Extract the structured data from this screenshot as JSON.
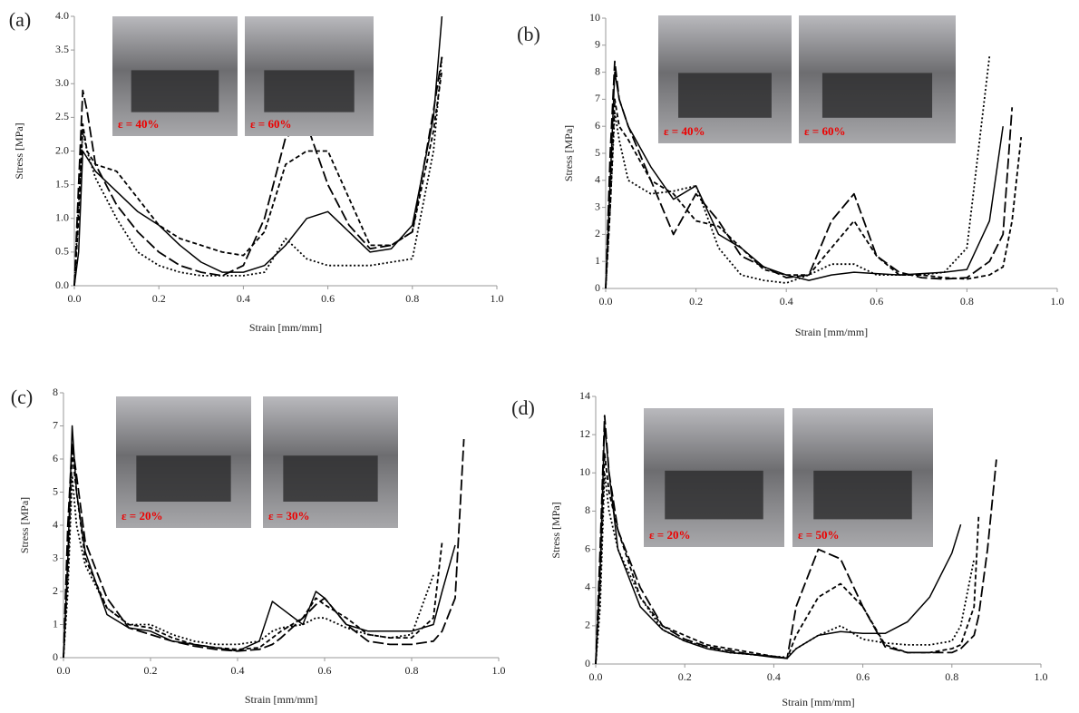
{
  "chart_data": [
    {
      "type": "line",
      "label": "(a)",
      "xlabel": "Strain [mm/mm]",
      "ylabel": "Stress [MPa]",
      "annotations": [
        "ε = 40%",
        "ε = 60%"
      ],
      "xlim": [
        0,
        1
      ],
      "ylim": [
        0,
        4
      ],
      "xticks": [
        {
          "value": 0,
          "label": "0.0"
        },
        0.2,
        0.4,
        0.6,
        0.8,
        {
          "value": 1,
          "label": "1.0"
        }
      ],
      "yticks": [
        {
          "value": 0,
          "label": "0.0"
        },
        0.5,
        {
          "value": 1,
          "label": "1.0"
        },
        1.5,
        {
          "value": 2,
          "label": "2.0"
        },
        2.5,
        {
          "value": 3,
          "label": "3.0"
        },
        3.5,
        {
          "value": 4,
          "label": "4.0"
        }
      ],
      "x": [
        0,
        0.01,
        0.02,
        0.03,
        0.05,
        0.1,
        0.15,
        0.2,
        0.25,
        0.3,
        0.35,
        0.4,
        0.45,
        0.5,
        0.55,
        0.6,
        0.65,
        0.7,
        0.75,
        0.8,
        0.85,
        0.87
      ],
      "series": [
        {
          "color": "#000",
          "dash": "solid",
          "values": [
            0,
            0.5,
            2.0,
            1.9,
            1.7,
            1.4,
            1.1,
            0.9,
            0.6,
            0.35,
            0.2,
            0.2,
            0.3,
            0.6,
            1.0,
            1.1,
            0.8,
            0.5,
            0.55,
            0.9,
            2.5,
            4.0
          ]
        },
        {
          "color": "#000",
          "dash": "dashed",
          "values": [
            0,
            1.0,
            2.4,
            2.0,
            1.8,
            1.7,
            1.3,
            0.9,
            0.7,
            0.6,
            0.5,
            0.45,
            0.8,
            1.8,
            2.0,
            2.0,
            1.3,
            0.6,
            0.6,
            0.8,
            2.3,
            3.2
          ]
        },
        {
          "color": "#000",
          "dash": "long-dash",
          "values": [
            0,
            1.5,
            2.9,
            2.6,
            1.8,
            1.2,
            0.8,
            0.5,
            0.3,
            0.2,
            0.15,
            0.3,
            1.0,
            2.2,
            2.4,
            1.5,
            0.9,
            0.55,
            0.6,
            0.8,
            2.6,
            3.4
          ]
        },
        {
          "color": "#000",
          "dash": "dotted",
          "values": [
            0,
            1.2,
            2.3,
            2.0,
            1.6,
            1.0,
            0.5,
            0.3,
            0.2,
            0.15,
            0.15,
            0.15,
            0.2,
            0.7,
            0.4,
            0.3,
            0.3,
            0.3,
            0.35,
            0.4,
            2.0,
            3.4
          ]
        }
      ]
    },
    {
      "type": "line",
      "label": "(b)",
      "xlabel": "Strain [mm/mm]",
      "ylabel": "Stress  [MPa]",
      "annotations": [
        "ε = 40%",
        "ε = 60%"
      ],
      "xlim": [
        0,
        1
      ],
      "ylim": [
        0,
        10
      ],
      "xticks": [
        {
          "value": 0,
          "label": "0.0"
        },
        0.2,
        0.4,
        0.6,
        0.8,
        {
          "value": 1,
          "label": "1.0"
        }
      ],
      "yticks": [
        0,
        1,
        2,
        3,
        4,
        5,
        6,
        7,
        8,
        9,
        10
      ],
      "x": [
        0,
        0.01,
        0.02,
        0.03,
        0.05,
        0.1,
        0.15,
        0.2,
        0.25,
        0.3,
        0.35,
        0.4,
        0.45,
        0.5,
        0.55,
        0.6,
        0.65,
        0.7,
        0.75,
        0.8,
        0.85,
        0.88,
        0.9,
        0.92
      ],
      "series": [
        {
          "color": "#000",
          "dash": "solid",
          "values": [
            0,
            4,
            8.0,
            7.0,
            6.0,
            4.5,
            3.3,
            3.8,
            2.0,
            1.5,
            0.8,
            0.5,
            0.3,
            0.5,
            0.6,
            0.55,
            0.5,
            0.55,
            0.6,
            0.7,
            2.5,
            6.0,
            null,
            null
          ]
        },
        {
          "color": "#000",
          "dash": "dashed",
          "values": [
            0,
            3,
            7.0,
            6.0,
            5.5,
            4.0,
            3.5,
            2.5,
            2.3,
            1.5,
            0.7,
            0.5,
            0.5,
            1.5,
            2.5,
            1.2,
            0.5,
            0.5,
            0.4,
            0.35,
            0.5,
            0.8,
            2.5,
            5.6
          ]
        },
        {
          "color": "#000",
          "dash": "long-dash",
          "values": [
            0,
            5,
            8.4,
            7.0,
            6.0,
            4.0,
            2.0,
            3.5,
            2.5,
            1.2,
            0.8,
            0.4,
            0.5,
            2.5,
            3.5,
            1.2,
            0.6,
            0.4,
            0.35,
            0.4,
            1.0,
            2.0,
            6.7,
            null
          ]
        },
        {
          "color": "#000",
          "dash": "dotted",
          "values": [
            0,
            3,
            6.5,
            5.5,
            4.0,
            3.5,
            3.6,
            3.8,
            1.5,
            0.5,
            0.3,
            0.2,
            0.5,
            0.9,
            0.9,
            0.5,
            0.5,
            0.5,
            0.6,
            1.5,
            8.6,
            null,
            null,
            null
          ]
        }
      ]
    },
    {
      "type": "line",
      "label": "(c)",
      "xlabel": "Strain [mm/mm]",
      "ylabel": "Stress  [MPa]",
      "annotations": [
        "ε = 20%",
        "ε = 30%"
      ],
      "xlim": [
        0,
        1
      ],
      "ylim": [
        0,
        8
      ],
      "xticks": [
        {
          "value": 0,
          "label": "0.0"
        },
        0.2,
        0.4,
        0.6,
        0.8,
        {
          "value": 1,
          "label": "1.0"
        }
      ],
      "yticks": [
        0,
        1,
        2,
        3,
        4,
        5,
        6,
        7,
        8
      ],
      "x": [
        0,
        0.01,
        0.02,
        0.03,
        0.05,
        0.1,
        0.15,
        0.2,
        0.25,
        0.3,
        0.35,
        0.4,
        0.45,
        0.48,
        0.5,
        0.55,
        0.58,
        0.6,
        0.65,
        0.7,
        0.75,
        0.8,
        0.85,
        0.87,
        0.9,
        0.92
      ],
      "series": [
        {
          "color": "#000",
          "dash": "solid",
          "values": [
            0,
            3,
            7.0,
            5.0,
            3.2,
            1.3,
            0.9,
            0.8,
            0.5,
            0.4,
            0.3,
            0.2,
            0.5,
            1.7,
            1.5,
            1.0,
            2.0,
            1.8,
            1.0,
            0.8,
            0.8,
            0.8,
            1.0,
            2.0,
            3.4,
            null
          ]
        },
        {
          "color": "#000",
          "dash": "dashed",
          "values": [
            0,
            2.5,
            6.2,
            5.0,
            3.0,
            1.5,
            1.0,
            0.9,
            0.6,
            0.4,
            0.3,
            0.25,
            0.3,
            0.6,
            0.8,
            1.2,
            1.8,
            1.6,
            1.2,
            0.7,
            0.6,
            0.6,
            1.2,
            3.5,
            null,
            null
          ]
        },
        {
          "color": "#000",
          "dash": "long-dash",
          "values": [
            0,
            4,
            6.5,
            5.5,
            3.5,
            1.8,
            0.9,
            0.7,
            0.5,
            0.35,
            0.25,
            0.2,
            0.25,
            0.4,
            0.6,
            1.2,
            1.6,
            1.8,
            1.0,
            0.5,
            0.4,
            0.4,
            0.5,
            0.8,
            1.8,
            6.6
          ]
        },
        {
          "color": "#000",
          "dash": "dotted",
          "values": [
            0,
            2,
            5.5,
            4.0,
            2.8,
            1.5,
            1.0,
            1.0,
            0.7,
            0.5,
            0.4,
            0.4,
            0.5,
            0.8,
            0.9,
            1.0,
            1.2,
            1.2,
            0.9,
            0.7,
            0.6,
            0.7,
            2.5,
            null,
            null,
            null
          ]
        }
      ]
    },
    {
      "type": "line",
      "label": "(d)",
      "xlabel": "Strain [mm/mm]",
      "ylabel": "Stress  [MPa]",
      "annotations": [
        "ε = 20%",
        "ε = 50%"
      ],
      "xlim": [
        0,
        1
      ],
      "ylim": [
        0,
        14
      ],
      "xticks": [
        {
          "value": 0,
          "label": "0.0"
        },
        0.2,
        0.4,
        0.6,
        0.8,
        {
          "value": 1,
          "label": "1.0"
        }
      ],
      "yticks": [
        0,
        2,
        4,
        6,
        8,
        10,
        12,
        14
      ],
      "x": [
        0,
        0.01,
        0.02,
        0.03,
        0.05,
        0.1,
        0.15,
        0.2,
        0.25,
        0.3,
        0.35,
        0.4,
        0.43,
        0.45,
        0.5,
        0.55,
        0.6,
        0.65,
        0.7,
        0.75,
        0.8,
        0.82,
        0.85,
        0.86,
        0.88,
        0.9
      ],
      "series": [
        {
          "color": "#000",
          "dash": "solid",
          "values": [
            0,
            5,
            12.5,
            10,
            6.0,
            3.0,
            1.8,
            1.2,
            0.8,
            0.6,
            0.5,
            0.35,
            0.3,
            0.8,
            1.5,
            1.7,
            1.6,
            1.6,
            2.2,
            3.5,
            5.8,
            7.3,
            null,
            null,
            null,
            null
          ]
        },
        {
          "color": "#000",
          "dash": "dashed",
          "values": [
            0,
            4,
            11,
            9,
            7,
            3.5,
            2,
            1.5,
            1.0,
            0.8,
            0.6,
            0.4,
            0.3,
            1.5,
            3.5,
            4.2,
            3.0,
            1.0,
            0.6,
            0.6,
            0.8,
            1.0,
            3.0,
            7.7,
            null,
            null
          ]
        },
        {
          "color": "#000",
          "dash": "long-dash",
          "values": [
            0,
            6,
            13,
            10,
            7,
            4,
            2,
            1.3,
            0.9,
            0.7,
            0.5,
            0.4,
            0.3,
            3.0,
            6.0,
            5.5,
            3.0,
            0.9,
            0.6,
            0.6,
            0.6,
            0.8,
            1.5,
            2.5,
            6.0,
            10.7
          ]
        },
        {
          "color": "#000",
          "dash": "dotted",
          "values": [
            0,
            3,
            10,
            8,
            6,
            3.5,
            1.8,
            1.2,
            0.9,
            0.6,
            0.5,
            0.4,
            0.35,
            0.8,
            1.5,
            2.0,
            1.3,
            1.1,
            1.0,
            1.0,
            1.2,
            2.0,
            5.5,
            null,
            null,
            null
          ]
        }
      ]
    }
  ]
}
